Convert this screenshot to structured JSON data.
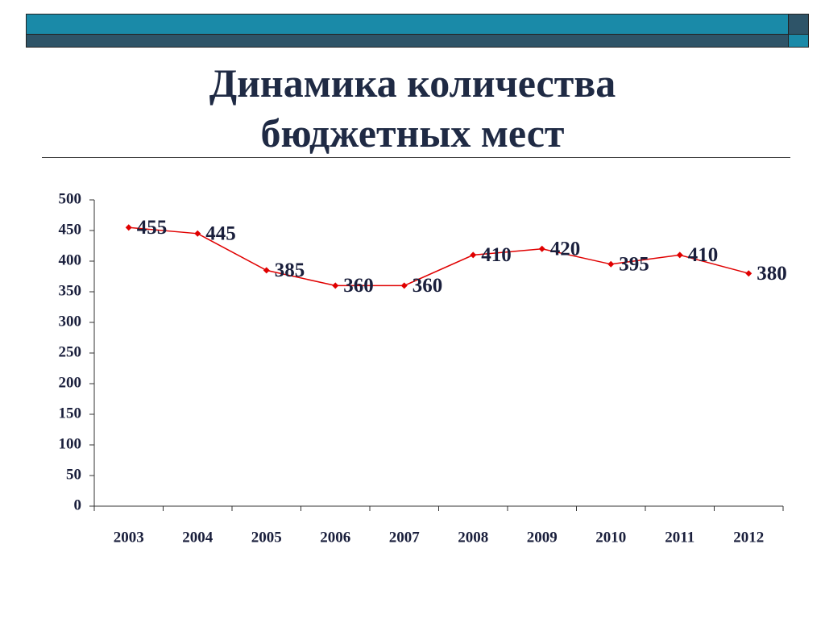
{
  "chart_data": {
    "type": "line",
    "title": "Динамика количества бюджетных мест",
    "categories": [
      "2003",
      "2004",
      "2005",
      "2006",
      "2007",
      "2008",
      "2009",
      "2010",
      "2011",
      "2012"
    ],
    "values": [
      455,
      445,
      385,
      360,
      360,
      410,
      420,
      395,
      410,
      380
    ],
    "color": "#e00000",
    "ylim": [
      0,
      500
    ],
    "yticks": [
      0,
      50,
      100,
      150,
      200,
      250,
      300,
      350,
      400,
      450,
      500
    ],
    "grid": false
  }
}
